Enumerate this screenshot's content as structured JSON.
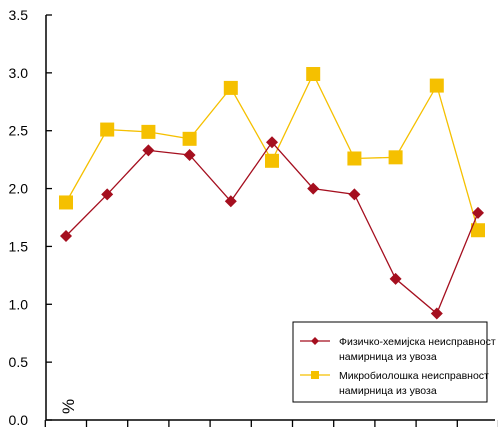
{
  "chart_data": {
    "type": "line",
    "unit_label": "%",
    "ylim": [
      0,
      3.5
    ],
    "y_ticks": [
      "0.0",
      "0.5",
      "1.0",
      "1.5",
      "2.0",
      "2.5",
      "3.0",
      "3.5"
    ],
    "y_tick_values": [
      0,
      0.5,
      1.0,
      1.5,
      2.0,
      2.5,
      3.0,
      3.5
    ],
    "x": [
      1,
      2,
      3,
      4,
      5,
      6,
      7,
      8,
      9,
      10,
      11
    ],
    "x_tick_labels": [],
    "grid": false,
    "legend_position": "bottom-right",
    "series": [
      {
        "name_lines": [
          "Физичко-хемијска неисправност",
          "намирница из увоза"
        ],
        "color": "#a50f1f",
        "marker": "diamond",
        "values": [
          1.59,
          1.95,
          2.33,
          2.29,
          1.89,
          2.4,
          2.0,
          1.95,
          1.22,
          0.92,
          1.79
        ]
      },
      {
        "name_lines": [
          "Микробиолошка неисправност",
          "намирница из увоза"
        ],
        "color": "#f5c000",
        "marker": "square",
        "values": [
          1.88,
          2.51,
          2.49,
          2.43,
          2.87,
          2.24,
          2.99,
          2.26,
          2.27,
          2.89,
          1.64
        ]
      }
    ]
  }
}
